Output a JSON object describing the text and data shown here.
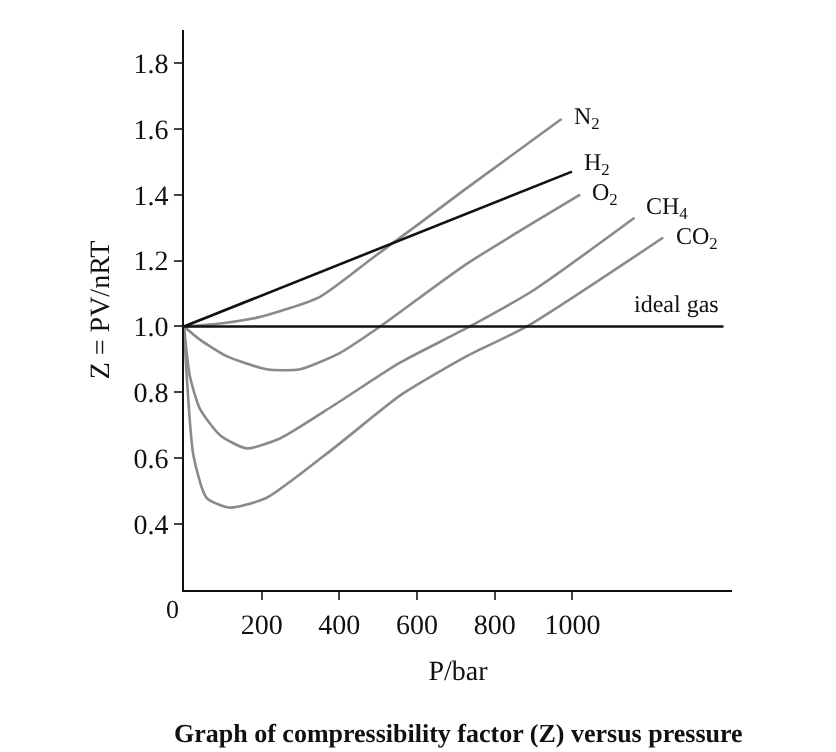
{
  "chart_data": {
    "type": "line",
    "title": "Graph of compressibility factor (Z) versus pressure",
    "xlabel": "P/bar",
    "ylabel": "Z = PV/nRT",
    "xlim": [
      0,
      1411
    ],
    "ylim": [
      0.2,
      1.9
    ],
    "xticks": [
      200,
      400,
      600,
      800,
      1000
    ],
    "yticks": [
      {
        "value": 0.4,
        "label": "0.4"
      },
      {
        "value": 0.6,
        "label": "0.6"
      },
      {
        "value": 0.8,
        "label": "0.8"
      },
      {
        "value": 1.0,
        "label": "1.0"
      },
      {
        "value": 1.2,
        "label": "1.2"
      },
      {
        "value": 1.4,
        "label": "1.4"
      },
      {
        "value": 1.6,
        "label": "1.6"
      },
      {
        "value": 1.8,
        "label": "1.8"
      }
    ],
    "legend": false,
    "marker": "none",
    "line_style": "solid",
    "annotations": [
      "0"
    ],
    "series": [
      {
        "name": "N$_{2}$",
        "color": "#8a8a8a",
        "x": [
          0,
          100,
          200,
          350,
          488,
          603,
          728,
          972
        ],
        "values": [
          1.0,
          1.01,
          1.03,
          1.09,
          1.21,
          1.31,
          1.42,
          1.63
        ]
      },
      {
        "name": "H$_{2}$",
        "color": "#111111",
        "x": [
          0,
          999
        ],
        "values": [
          1.0,
          1.47
        ]
      },
      {
        "name": "O$_{2}$",
        "color": "#8a8a8a",
        "x": [
          0,
          41,
          110,
          213,
          299,
          402,
          505,
          728,
          1020
        ],
        "values": [
          1.0,
          0.96,
          0.91,
          0.87,
          0.87,
          0.92,
          1.0,
          1.19,
          1.4
        ]
      },
      {
        "name": "CH$_{4}$",
        "color": "#8a8a8a",
        "x": [
          0,
          15,
          41,
          93,
          161,
          247,
          385,
          556,
          736,
          900,
          1160
        ],
        "values": [
          1.0,
          0.85,
          0.75,
          0.67,
          0.63,
          0.66,
          0.76,
          0.89,
          1.0,
          1.11,
          1.33
        ]
      },
      {
        "name": "CO$_{2}$",
        "color": "#8a8a8a",
        "x": [
          0,
          7,
          24,
          58,
          118,
          213,
          385,
          556,
          728,
          883,
          1234
        ],
        "values": [
          1.0,
          0.85,
          0.61,
          0.48,
          0.45,
          0.48,
          0.63,
          0.79,
          0.91,
          1.0,
          1.27
        ]
      },
      {
        "name": "ideal gas",
        "color": "#111111",
        "x": [
          0,
          1389
        ],
        "values": [
          1.0,
          1.0
        ]
      }
    ]
  }
}
